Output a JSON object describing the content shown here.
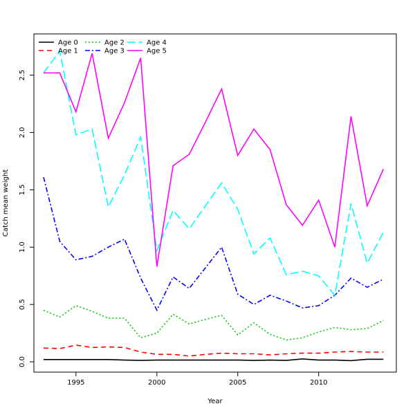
{
  "chart_data": {
    "type": "line",
    "xlabel": "Year",
    "ylabel": "Catch mean weight",
    "xlim": [
      1992.4,
      2014.8
    ],
    "ylim": [
      -0.09,
      2.86
    ],
    "x_ticks": [
      1995,
      2000,
      2005,
      2010
    ],
    "y_ticks": [
      0.0,
      0.5,
      1.0,
      1.5,
      2.0,
      2.5
    ],
    "x_tick_labels": [
      "1995",
      "2000",
      "2005",
      "2010"
    ],
    "y_tick_labels": [
      "0.0",
      "0.5",
      "1.0",
      "1.5",
      "2.0",
      "2.5"
    ],
    "legend_position": "top-left",
    "x": [
      1993,
      1994,
      1995,
      1996,
      1997,
      1998,
      1999,
      2000,
      2001,
      2002,
      2003,
      2004,
      2005,
      2006,
      2007,
      2008,
      2009,
      2010,
      2011,
      2012,
      2013,
      2014
    ],
    "series": [
      {
        "name": "Age 0",
        "color": "#000000",
        "dash": "",
        "values": [
          0.02,
          0.02,
          0.02,
          0.02,
          0.02,
          0.015,
          0.012,
          0.015,
          0.015,
          0.015,
          0.015,
          0.015,
          0.015,
          0.012,
          0.015,
          0.012,
          0.025,
          0.015,
          0.015,
          0.01,
          0.022,
          0.022
        ]
      },
      {
        "name": "Age 1",
        "color": "#ff0000",
        "dash": "7,5",
        "values": [
          0.12,
          0.115,
          0.145,
          0.125,
          0.13,
          0.125,
          0.085,
          0.065,
          0.065,
          0.05,
          0.065,
          0.075,
          0.07,
          0.07,
          0.06,
          0.07,
          0.075,
          0.075,
          0.085,
          0.09,
          0.085,
          0.085
        ]
      },
      {
        "name": "Age 2",
        "color": "#00cc00",
        "dash": "2,3",
        "values": [
          0.45,
          0.39,
          0.49,
          0.44,
          0.38,
          0.38,
          0.21,
          0.25,
          0.415,
          0.33,
          0.37,
          0.405,
          0.235,
          0.34,
          0.24,
          0.19,
          0.21,
          0.26,
          0.3,
          0.28,
          0.29,
          0.36
        ]
      },
      {
        "name": "Age 3",
        "color": "#0000ff",
        "dash": "7,3,2,3",
        "values": [
          1.61,
          1.05,
          0.89,
          0.92,
          1.0,
          1.07,
          0.73,
          0.45,
          0.74,
          0.64,
          0.82,
          1.0,
          0.59,
          0.5,
          0.58,
          0.53,
          0.47,
          0.49,
          0.58,
          0.73,
          0.65,
          0.72
        ]
      },
      {
        "name": "Age 4",
        "color": "#00ffff",
        "dash": "12,5",
        "values": [
          2.52,
          2.71,
          1.98,
          2.03,
          1.35,
          1.63,
          1.96,
          0.97,
          1.32,
          1.16,
          1.36,
          1.56,
          1.33,
          0.94,
          1.08,
          0.76,
          0.79,
          0.75,
          0.58,
          1.38,
          0.86,
          1.13
        ]
      },
      {
        "name": "Age 5",
        "color": "#ff00ff",
        "dash": "",
        "values": [
          2.52,
          2.52,
          2.18,
          2.69,
          1.95,
          2.26,
          2.65,
          0.83,
          1.71,
          1.81,
          2.09,
          2.38,
          1.8,
          2.03,
          1.85,
          1.37,
          1.19,
          1.41,
          1.0,
          2.14,
          1.36,
          1.68
        ]
      }
    ]
  }
}
